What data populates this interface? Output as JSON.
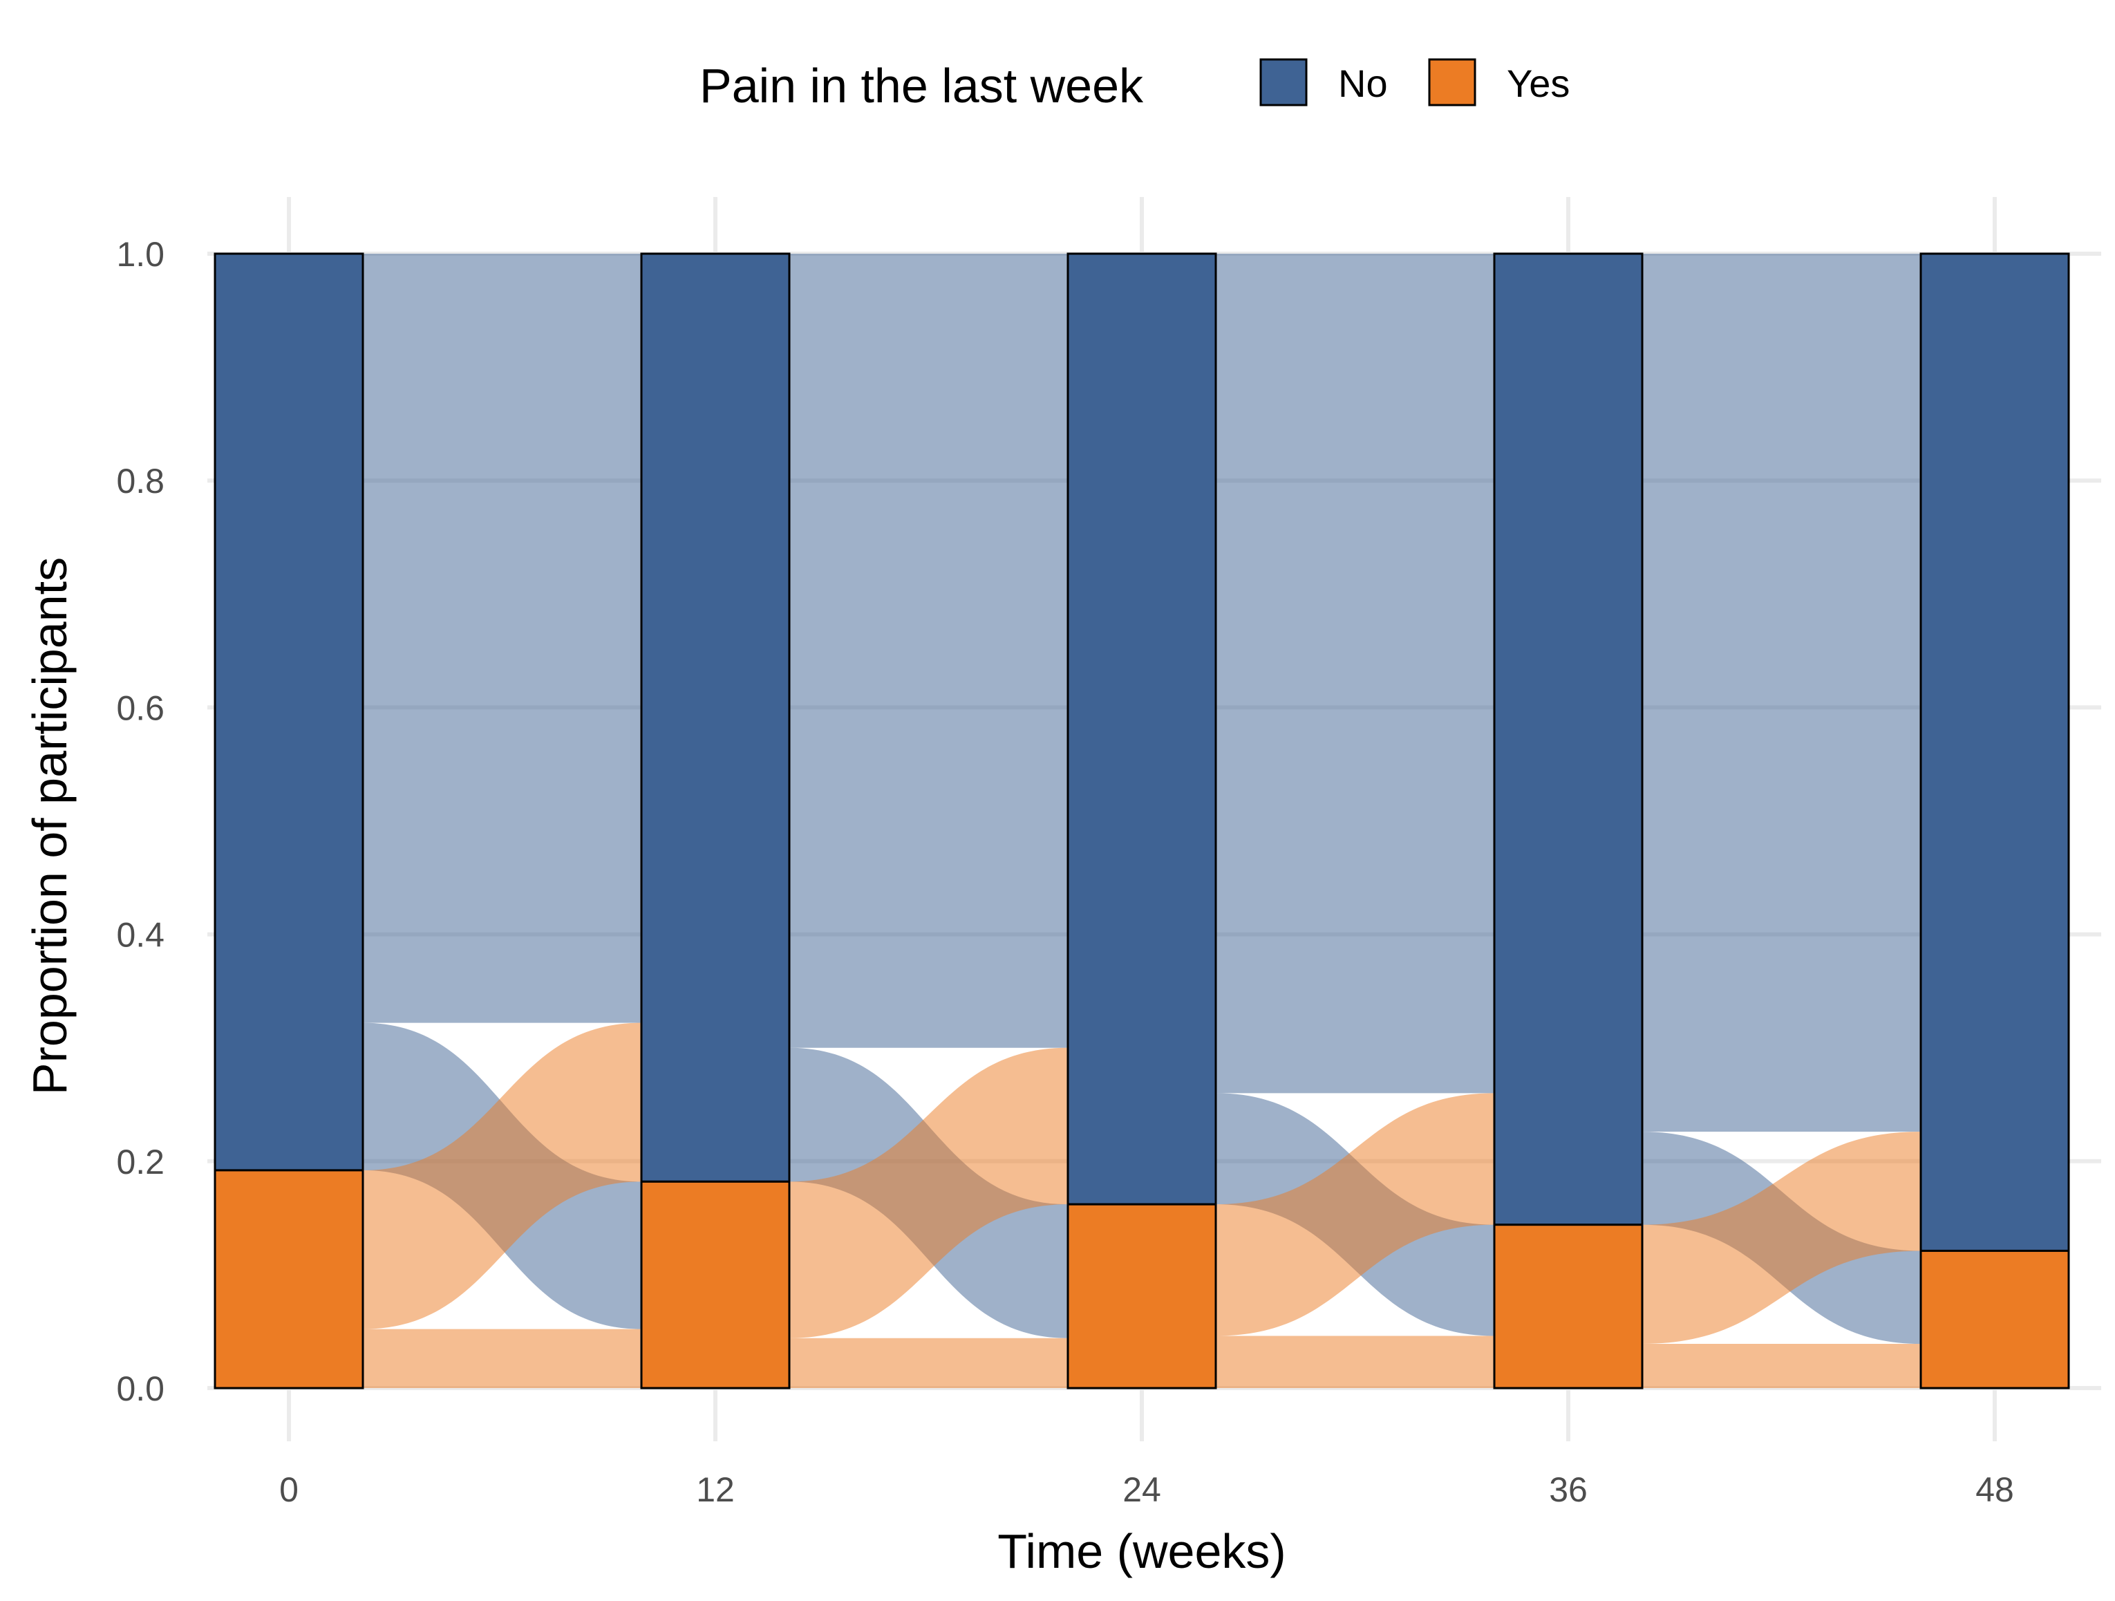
{
  "chart_data": {
    "type": "alluvial",
    "xlabel": "Time (weeks)",
    "ylabel": "Proportion of participants",
    "x": [
      0,
      12,
      24,
      36,
      48
    ],
    "x_tick_labels": [
      "0",
      "12",
      "24",
      "36",
      "48"
    ],
    "ylim": [
      0,
      1
    ],
    "y_ticks": [
      0.0,
      0.2,
      0.4,
      0.6,
      0.8,
      1.0
    ],
    "y_tick_labels": [
      "0.0",
      "0.2",
      "0.4",
      "0.6",
      "0.8",
      "1.0"
    ],
    "grid": true,
    "legend": {
      "title": "Pain in the last week",
      "position": "top",
      "entries": [
        {
          "label": "No",
          "color": "#3f6394"
        },
        {
          "label": "Yes",
          "color": "#ec7c24"
        }
      ]
    },
    "series": [
      {
        "name": "No",
        "color": "#3f6394",
        "values": [
          0.808,
          0.818,
          0.838,
          0.856,
          0.879
        ]
      },
      {
        "name": "Yes",
        "color": "#ec7c24",
        "values": [
          0.192,
          0.182,
          0.162,
          0.144,
          0.121
        ]
      }
    ],
    "transitions": [
      {
        "from_x": 0,
        "to_x": 12,
        "no_to_no": 0.678,
        "no_to_yes": 0.13,
        "yes_to_no": 0.14,
        "yes_to_yes": 0.052
      },
      {
        "from_x": 12,
        "to_x": 24,
        "no_to_no": 0.7,
        "no_to_yes": 0.118,
        "yes_to_no": 0.138,
        "yes_to_yes": 0.044
      },
      {
        "from_x": 24,
        "to_x": 36,
        "no_to_no": 0.74,
        "no_to_yes": 0.098,
        "yes_to_no": 0.116,
        "yes_to_yes": 0.046
      },
      {
        "from_x": 36,
        "to_x": 48,
        "no_to_no": 0.774,
        "no_to_yes": 0.082,
        "yes_to_no": 0.105,
        "yes_to_yes": 0.039
      }
    ]
  }
}
